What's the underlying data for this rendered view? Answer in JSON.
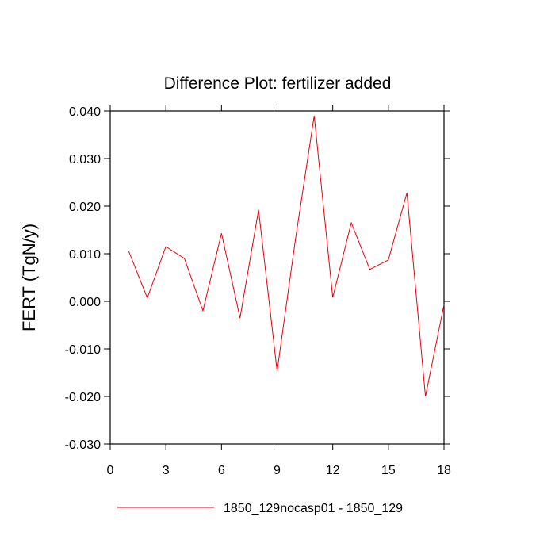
{
  "chart_data": {
    "type": "line",
    "title": "Difference Plot: fertilizer added",
    "y_label": "FERT  (TgN/y)",
    "x": [
      1,
      2,
      3,
      4,
      5,
      6,
      7,
      8,
      9,
      10,
      11,
      12,
      13,
      14,
      15,
      16,
      17,
      18
    ],
    "series": [
      {
        "name": "1850_129nocasp01 - 1850_129",
        "color": "#e8000b",
        "values": [
          0.0105,
          0.0007,
          0.0115,
          0.009,
          -0.002,
          0.0143,
          -0.0035,
          0.0192,
          -0.0147,
          0.0133,
          0.039,
          0.0008,
          0.0165,
          0.0067,
          0.0087,
          0.0228,
          -0.02,
          -0.0007
        ]
      }
    ],
    "xlim": [
      0,
      18
    ],
    "xticks": [
      0,
      3,
      6,
      9,
      12,
      15,
      18
    ],
    "ylim": [
      -0.03,
      0.04
    ],
    "yticks": [
      {
        "value": -0.03,
        "label": "-0.030"
      },
      {
        "value": -0.02,
        "label": "-0.020"
      },
      {
        "value": -0.01,
        "label": "-0.010"
      },
      {
        "value": 0,
        "label": "0.000"
      },
      {
        "value": 0.01,
        "label": "0.010"
      },
      {
        "value": 0.02,
        "label": "0.020"
      },
      {
        "value": 0.03,
        "label": "0.030"
      },
      {
        "value": 0.04,
        "label": "0.040"
      }
    ],
    "grid": false
  }
}
